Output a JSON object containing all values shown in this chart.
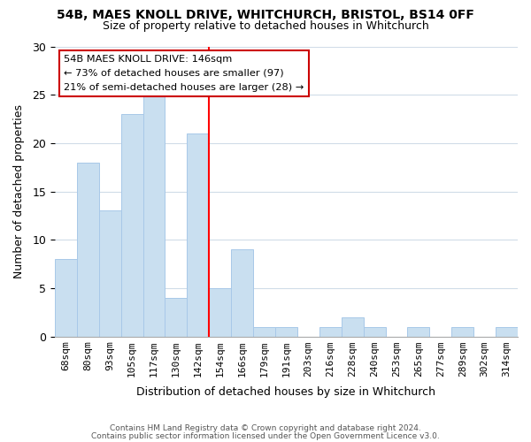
{
  "title": "54B, MAES KNOLL DRIVE, WHITCHURCH, BRISTOL, BS14 0FF",
  "subtitle": "Size of property relative to detached houses in Whitchurch",
  "xlabel": "Distribution of detached houses by size in Whitchurch",
  "ylabel": "Number of detached properties",
  "bin_labels": [
    "68sqm",
    "80sqm",
    "93sqm",
    "105sqm",
    "117sqm",
    "130sqm",
    "142sqm",
    "154sqm",
    "166sqm",
    "179sqm",
    "191sqm",
    "203sqm",
    "216sqm",
    "228sqm",
    "240sqm",
    "253sqm",
    "265sqm",
    "277sqm",
    "289sqm",
    "302sqm",
    "314sqm"
  ],
  "bar_heights": [
    8,
    18,
    13,
    23,
    25,
    4,
    21,
    5,
    9,
    1,
    1,
    0,
    1,
    2,
    1,
    0,
    1,
    0,
    1,
    0,
    1
  ],
  "bar_color": "#c9dff0",
  "bar_edge_color": "#a8c8e8",
  "vline_x": 6.5,
  "vline_color": "red",
  "ylim": [
    0,
    30
  ],
  "yticks": [
    0,
    5,
    10,
    15,
    20,
    25,
    30
  ],
  "legend_title": "54B MAES KNOLL DRIVE: 146sqm",
  "legend_line1": "← 73% of detached houses are smaller (97)",
  "legend_line2": "21% of semi-detached houses are larger (28) →",
  "legend_box_color": "white",
  "legend_box_edge_color": "#cc0000",
  "footer1": "Contains HM Land Registry data © Crown copyright and database right 2024.",
  "footer2": "Contains public sector information licensed under the Open Government Licence v3.0.",
  "background_color": "#ffffff",
  "plot_background_color": "#ffffff",
  "grid_color": "#d0dce8"
}
